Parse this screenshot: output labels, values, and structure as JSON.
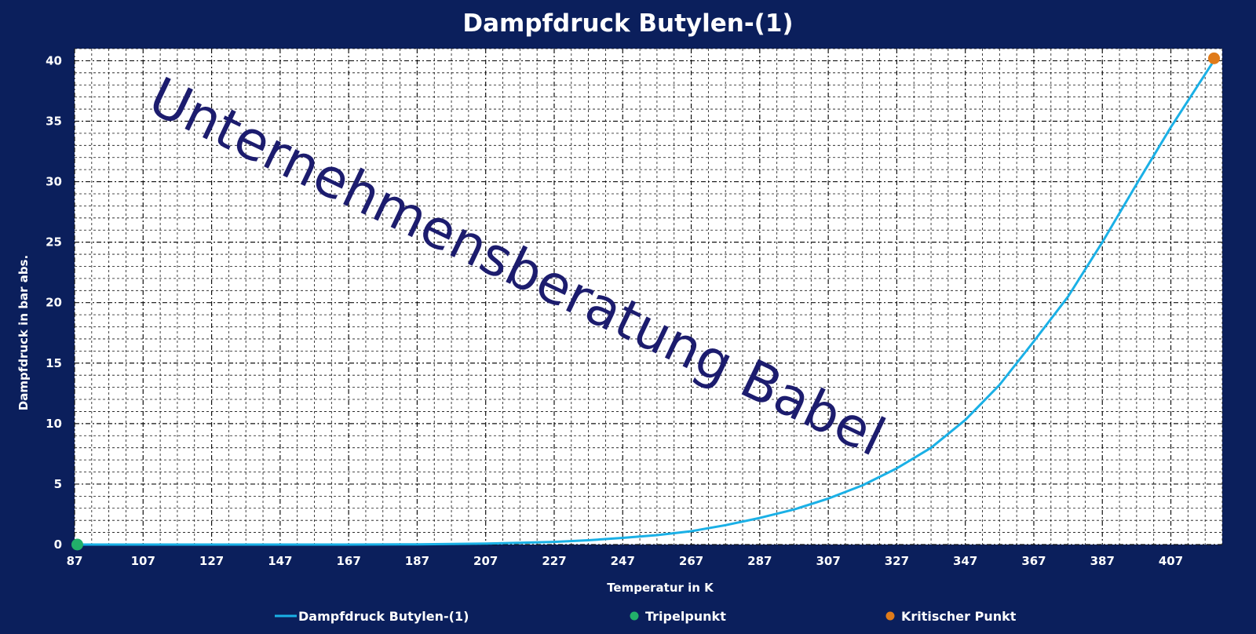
{
  "chart_data": {
    "type": "line",
    "title": "Dampfdruck Butylen-(1)",
    "xlabel": "Temperatur in K",
    "ylabel": "Dampfdruck in bar abs.",
    "xlim": [
      87,
      422
    ],
    "ylim": [
      0,
      41
    ],
    "x_ticks": [
      "87",
      "107",
      "127",
      "147",
      "167",
      "187",
      "207",
      "227",
      "247",
      "267",
      "287",
      "307",
      "327",
      "347",
      "367",
      "387",
      "407"
    ],
    "x_tick_values": [
      87,
      107,
      127,
      147,
      167,
      187,
      207,
      227,
      247,
      267,
      287,
      307,
      327,
      347,
      367,
      387,
      407
    ],
    "y_ticks": [
      "0",
      "5",
      "10",
      "15",
      "20",
      "25",
      "30",
      "35",
      "40"
    ],
    "y_tick_values": [
      0,
      5,
      10,
      15,
      20,
      25,
      30,
      35,
      40
    ],
    "grid": true,
    "legend_position": "bottom",
    "series": [
      {
        "name": "Dampfdruck Butylen-(1)",
        "kind": "line",
        "color": "#1ab0e6",
        "x": [
          87,
          107,
          127,
          147,
          167,
          187,
          207,
          217,
          227,
          237,
          247,
          257,
          267,
          277,
          287,
          297,
          307,
          317,
          327,
          337,
          347,
          357,
          367,
          377,
          387,
          397,
          407,
          420
        ],
        "y": [
          0.0,
          0.0,
          0.0,
          0.0,
          0.0,
          0.02,
          0.08,
          0.14,
          0.22,
          0.36,
          0.55,
          0.78,
          1.1,
          1.6,
          2.2,
          2.9,
          3.8,
          4.9,
          6.3,
          8.0,
          10.3,
          13.2,
          16.8,
          20.5,
          25.0,
          29.8,
          34.5,
          40.2
        ]
      },
      {
        "name": "Tripelpunkt",
        "kind": "point",
        "color": "#22b06a",
        "x": [
          87.8
        ],
        "y": [
          0.0
        ]
      },
      {
        "name": "Kritischer Punkt",
        "kind": "point",
        "color": "#e07b1a",
        "x": [
          419.6
        ],
        "y": [
          40.2
        ]
      }
    ],
    "watermark": "Unternehmensberatung Babel"
  },
  "colors": {
    "background": "#0b1f5c",
    "plot_background": "#ffffff",
    "grid": "#111111",
    "text": "#ffffff",
    "watermark": "#1c1c6e"
  }
}
